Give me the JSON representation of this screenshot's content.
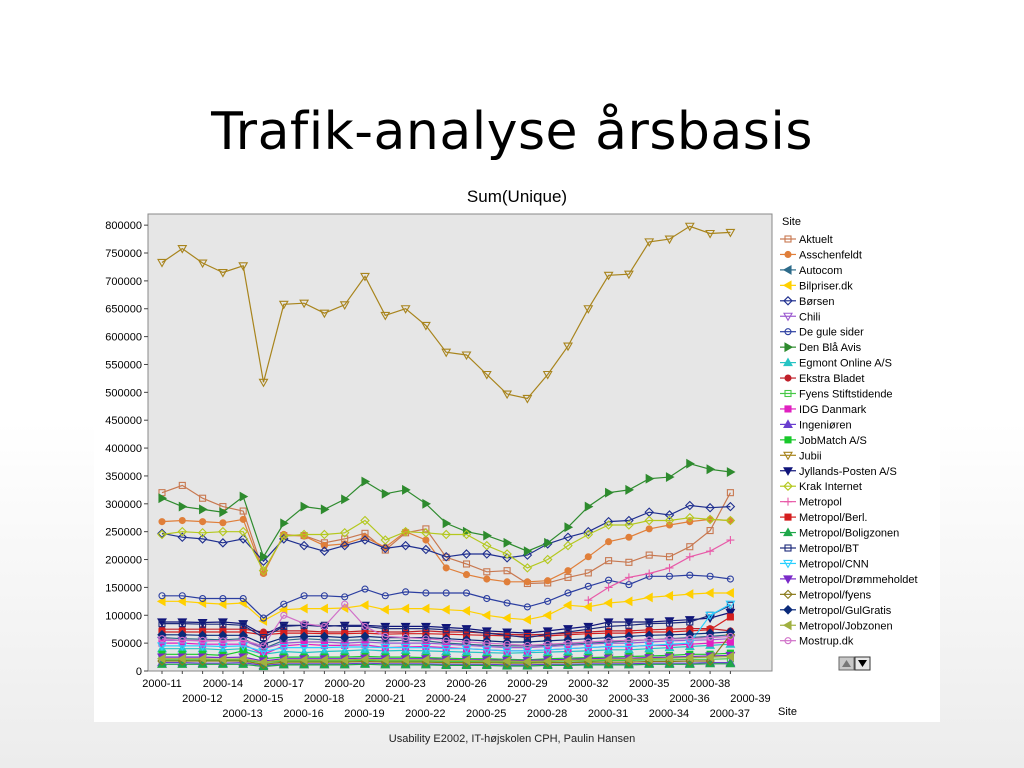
{
  "slide": {
    "title": "Trafik-analyse årsbasis",
    "footer": "Usability E2002, IT-højskolen CPH, Paulin Hansen"
  },
  "chart_data": {
    "type": "line",
    "title": "Sum(Unique)",
    "legend_title": "Site",
    "legend_position": "right",
    "xlabel": "Site",
    "ylabel": "",
    "ylim": [
      0,
      820000
    ],
    "yticks": [
      0,
      50000,
      100000,
      150000,
      200000,
      250000,
      300000,
      350000,
      400000,
      450000,
      500000,
      550000,
      600000,
      650000,
      700000,
      750000,
      800000
    ],
    "grid": false,
    "plot_background": "#e6e6e6",
    "categories": [
      "2000-11",
      "2000-12",
      "2000-13",
      "2000-14",
      "2000-15",
      "2000-16",
      "2000-17",
      "2000-18",
      "2000-19",
      "2000-20",
      "2000-21",
      "2000-22",
      "2000-23",
      "2000-24",
      "2000-25",
      "2000-26",
      "2000-27",
      "2000-28",
      "2000-29",
      "2000-30",
      "2000-31",
      "2000-32",
      "2000-33",
      "2000-34",
      "2000-35",
      "2000-36",
      "2000-37",
      "2000-38",
      "2000-39"
    ],
    "series": [
      {
        "name": "Aktuelt",
        "color": "#c87850",
        "marker": "square-open",
        "values": [
          320000,
          333000,
          310000,
          295000,
          287000,
          178000,
          243000,
          243000,
          230000,
          237000,
          247000,
          217000,
          248000,
          255000,
          204000,
          192000,
          178000,
          180000,
          157000,
          158000,
          168000,
          176000,
          198000,
          195000,
          208000,
          205000,
          223000,
          252000,
          320000
        ]
      },
      {
        "name": "Asschenfeldt",
        "color": "#e07f3a",
        "marker": "circle",
        "values": [
          268000,
          270000,
          268000,
          266000,
          272000,
          175000,
          245000,
          242000,
          225000,
          228000,
          240000,
          222000,
          250000,
          235000,
          185000,
          173000,
          165000,
          160000,
          160000,
          162000,
          180000,
          205000,
          232000,
          240000,
          255000,
          262000,
          268000,
          272000,
          270000
        ]
      },
      {
        "name": "Autocom",
        "color": "#2d6b8a",
        "marker": "tri-left",
        "values": [
          60000,
          58000,
          57000,
          56000,
          58000,
          40000,
          55000,
          58000,
          56000,
          55000,
          56000,
          54000,
          55000,
          54000,
          50000,
          48000,
          46000,
          45000,
          45000,
          46000,
          48000,
          50000,
          52000,
          54000,
          56000,
          58000,
          60000,
          62000,
          65000
        ]
      },
      {
        "name": "Bilpriser.dk",
        "color": "#ffd000",
        "marker": "tri-left",
        "values": [
          125000,
          125000,
          122000,
          120000,
          122000,
          90000,
          110000,
          112000,
          112000,
          113000,
          118000,
          110000,
          112000,
          112000,
          110000,
          108000,
          100000,
          95000,
          92000,
          100000,
          118000,
          115000,
          122000,
          125000,
          132000,
          135000,
          138000,
          140000,
          140000
        ]
      },
      {
        "name": "Børsen",
        "color": "#1f2f8f",
        "marker": "diamond-open",
        "values": [
          247000,
          240000,
          237000,
          230000,
          237000,
          197000,
          237000,
          225000,
          215000,
          225000,
          235000,
          220000,
          225000,
          218000,
          205000,
          210000,
          210000,
          203000,
          208000,
          228000,
          240000,
          250000,
          268000,
          270000,
          285000,
          280000,
          297000,
          293000,
          295000
        ]
      },
      {
        "name": "Chili",
        "color": "#9b59d0",
        "marker": "tri-down-open",
        "values": [
          55000,
          55000,
          54000,
          54000,
          55000,
          40000,
          50000,
          52000,
          52000,
          50000,
          52000,
          50000,
          50000,
          50000,
          48000,
          46000,
          44000,
          42000,
          42000,
          44000,
          46000,
          48000,
          50000,
          50000,
          52000,
          54000,
          55000,
          56000,
          58000
        ]
      },
      {
        "name": "De gule sider",
        "color": "#2b3ea0",
        "marker": "circle-open",
        "values": [
          135000,
          135000,
          130000,
          130000,
          130000,
          95000,
          120000,
          135000,
          135000,
          133000,
          147000,
          135000,
          142000,
          140000,
          140000,
          140000,
          130000,
          122000,
          115000,
          125000,
          140000,
          152000,
          163000,
          155000,
          170000,
          170000,
          172000,
          170000,
          165000
        ]
      },
      {
        "name": "Den Blå Avis",
        "color": "#2e8b2e",
        "marker": "tri-right",
        "values": [
          310000,
          295000,
          290000,
          285000,
          313000,
          205000,
          265000,
          295000,
          290000,
          308000,
          340000,
          318000,
          325000,
          300000,
          265000,
          250000,
          243000,
          230000,
          215000,
          230000,
          258000,
          295000,
          320000,
          325000,
          345000,
          348000,
          372000,
          362000,
          357000
        ]
      },
      {
        "name": "Egmont Online A/S",
        "color": "#27c4c4",
        "marker": "tri-up",
        "values": [
          40000,
          40000,
          40000,
          38000,
          40000,
          30000,
          35000,
          33000,
          35000,
          36000,
          38000,
          36000,
          37000,
          36000,
          35000,
          34000,
          33000,
          32000,
          33000,
          34000,
          35000,
          36000,
          38000,
          38000,
          40000,
          42000,
          44000,
          46000,
          48000
        ]
      },
      {
        "name": "Ekstra Bladet",
        "color": "#c0202a",
        "marker": "circle",
        "values": [
          75000,
          75000,
          75000,
          75000,
          75000,
          70000,
          72000,
          72000,
          70000,
          70000,
          72000,
          70000,
          70000,
          72000,
          70000,
          70000,
          68000,
          66000,
          65000,
          66000,
          68000,
          70000,
          72000,
          72000,
          74000,
          75000,
          76000,
          76000,
          72000
        ]
      },
      {
        "name": "Fyens Stiftstidende",
        "color": "#46c846",
        "marker": "square-open",
        "values": [
          20000,
          20000,
          20000,
          20000,
          20000,
          15000,
          18000,
          18000,
          18000,
          18000,
          19000,
          18000,
          18000,
          18000,
          17000,
          17000,
          17000,
          16000,
          16000,
          17000,
          18000,
          18000,
          19000,
          19000,
          20000,
          20000,
          21000,
          21000,
          22000
        ]
      },
      {
        "name": "IDG Danmark",
        "color": "#e020c0",
        "marker": "square",
        "values": [
          50000,
          50000,
          48000,
          48000,
          48000,
          30000,
          45000,
          48000,
          46000,
          46000,
          47000,
          42000,
          43000,
          44000,
          42000,
          40000,
          38000,
          36000,
          36000,
          38000,
          40000,
          42000,
          44000,
          44000,
          46000,
          46000,
          48000,
          50000,
          52000
        ]
      },
      {
        "name": "Ingeniøren",
        "color": "#6a3fcf",
        "marker": "tri-up",
        "values": [
          15000,
          15000,
          14000,
          14000,
          15000,
          10000,
          13000,
          13000,
          13000,
          13000,
          14000,
          13000,
          13000,
          13000,
          12000,
          12000,
          12000,
          11000,
          11000,
          12000,
          12000,
          13000,
          13000,
          13000,
          14000,
          14000,
          14000,
          15000,
          15000
        ]
      },
      {
        "name": "JobMatch A/S",
        "color": "#18c82a",
        "marker": "square",
        "values": [
          30000,
          30000,
          30000,
          28000,
          36000,
          22000,
          25000,
          25000,
          25000,
          25000,
          26000,
          25000,
          25000,
          24000,
          23000,
          22000,
          22000,
          21000,
          20000,
          22000,
          23000,
          24000,
          25000,
          26000,
          27000,
          28000,
          30000,
          30000,
          32000
        ]
      },
      {
        "name": "Jubii",
        "color": "#a8841c",
        "marker": "tri-down-open",
        "values": [
          733000,
          758000,
          732000,
          715000,
          727000,
          518000,
          658000,
          660000,
          642000,
          657000,
          708000,
          638000,
          650000,
          620000,
          572000,
          567000,
          532000,
          497000,
          489000,
          532000,
          583000,
          650000,
          710000,
          712000,
          770000,
          775000,
          798000,
          785000,
          787000
        ]
      },
      {
        "name": "Jyllands-Posten A/S",
        "color": "#10157a",
        "marker": "tri-down",
        "values": [
          88000,
          88000,
          87000,
          88000,
          85000,
          65000,
          82000,
          82000,
          80000,
          82000,
          82000,
          80000,
          80000,
          80000,
          78000,
          76000,
          72000,
          70000,
          68000,
          72000,
          76000,
          80000,
          88000,
          88000,
          88000,
          90000,
          92000,
          95000,
          105000
        ]
      },
      {
        "name": "Krak Internet",
        "color": "#b4c81e",
        "marker": "diamond-open",
        "values": [
          245000,
          250000,
          248000,
          250000,
          250000,
          180000,
          242000,
          245000,
          245000,
          248000,
          270000,
          235000,
          250000,
          248000,
          245000,
          245000,
          225000,
          210000,
          185000,
          200000,
          225000,
          245000,
          262000,
          262000,
          270000,
          270000,
          275000,
          272000,
          270000
        ]
      },
      {
        "name": "Metropol",
        "color": "#e85aa8",
        "marker": "plus",
        "values": [
          null,
          null,
          null,
          null,
          null,
          null,
          null,
          null,
          null,
          null,
          null,
          null,
          null,
          null,
          null,
          null,
          null,
          null,
          null,
          null,
          null,
          127000,
          150000,
          168000,
          175000,
          185000,
          205000,
          215000,
          235000
        ]
      },
      {
        "name": "Metropol/Berl.",
        "color": "#d41f1f",
        "marker": "square",
        "values": [
          70000,
          70000,
          70000,
          70000,
          70000,
          65000,
          68000,
          68000,
          67000,
          67000,
          68000,
          66000,
          67000,
          67000,
          66000,
          65000,
          64000,
          63000,
          62000,
          63000,
          65000,
          67000,
          68000,
          68000,
          70000,
          70000,
          72000,
          74000,
          97000
        ]
      },
      {
        "name": "Metropol/Boligzonen",
        "color": "#1fa84a",
        "marker": "tri-up",
        "values": [
          12000,
          12000,
          12000,
          12000,
          12000,
          8000,
          11000,
          11000,
          11000,
          11000,
          12000,
          11000,
          11000,
          11000,
          10000,
          10000,
          10000,
          9000,
          9000,
          10000,
          10000,
          11000,
          11000,
          11000,
          12000,
          12000,
          12000,
          13000,
          13000
        ]
      },
      {
        "name": "Metropol/BT",
        "color": "#1d2a7a",
        "marker": "square-open",
        "values": [
          85000,
          85000,
          84000,
          84000,
          82000,
          60000,
          80000,
          82000,
          82000,
          80000,
          80000,
          76000,
          76000,
          76000,
          74000,
          72000,
          68000,
          64000,
          60000,
          66000,
          70000,
          75000,
          80000,
          82000,
          85000,
          86000,
          88000,
          100000,
          118000
        ]
      },
      {
        "name": "Metropol/CNN",
        "color": "#2ad0ff",
        "marker": "tri-down-open",
        "values": [
          45000,
          45000,
          45000,
          44000,
          45000,
          35000,
          42000,
          42000,
          42000,
          43000,
          43000,
          42000,
          42000,
          42000,
          40000,
          40000,
          38000,
          36000,
          36000,
          38000,
          40000,
          42000,
          44000,
          44000,
          46000,
          48000,
          50000,
          100000,
          120000
        ]
      },
      {
        "name": "Metropol/Drømmeholdet",
        "color": "#7a2ac8",
        "marker": "tri-down",
        "values": [
          25000,
          25000,
          25000,
          24000,
          25000,
          18000,
          22000,
          22000,
          22000,
          22000,
          23000,
          22000,
          22000,
          22000,
          21000,
          20000,
          20000,
          19000,
          19000,
          20000,
          21000,
          22000,
          23000,
          23000,
          24000,
          25000,
          26000,
          27000,
          28000
        ]
      },
      {
        "name": "Metropol/fyens",
        "color": "#8a7a1a",
        "marker": "diamond-open",
        "values": [
          18000,
          18000,
          18000,
          18000,
          18000,
          12000,
          16000,
          16000,
          16000,
          16000,
          17000,
          16000,
          16000,
          16000,
          15000,
          15000,
          15000,
          14000,
          14000,
          15000,
          15000,
          16000,
          16000,
          16000,
          17000,
          17000,
          18000,
          18000,
          65000
        ]
      },
      {
        "name": "Metropol/GulGratis",
        "color": "#0a2a7a",
        "marker": "diamond",
        "values": [
          65000,
          65000,
          64000,
          64000,
          64000,
          48000,
          60000,
          62000,
          62000,
          60000,
          62000,
          60000,
          60000,
          60000,
          58000,
          56000,
          54000,
          52000,
          52000,
          54000,
          56000,
          58000,
          60000,
          62000,
          64000,
          65000,
          66000,
          68000,
          70000
        ]
      },
      {
        "name": "Metropol/Jobzonen",
        "color": "#a0b040",
        "marker": "tri-left",
        "values": [
          22000,
          22000,
          22000,
          21000,
          22000,
          16000,
          20000,
          20000,
          20000,
          20000,
          21000,
          20000,
          20000,
          20000,
          19000,
          19000,
          18000,
          18000,
          17000,
          18000,
          19000,
          20000,
          21000,
          21000,
          22000,
          23000,
          24000,
          25000,
          26000
        ]
      },
      {
        "name": "Mostrup.dk",
        "color": "#d070c8",
        "marker": "circle-open",
        "values": [
          58000,
          55000,
          55000,
          54000,
          55000,
          45000,
          100000,
          85000,
          80000,
          120000,
          80000,
          62000,
          60000,
          58000,
          55000,
          52000,
          50000,
          48000,
          46000,
          48000,
          50000,
          52000,
          54000,
          55000,
          56000,
          57000,
          58000,
          60000,
          62000
        ]
      }
    ]
  }
}
